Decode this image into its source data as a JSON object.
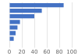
{
  "chart_data": {
    "type": "bar",
    "orientation": "horizontal",
    "categories": [
      null,
      null,
      null,
      null,
      null,
      null,
      null
    ],
    "values": [
      87.0,
      52.0,
      40.0,
      17.0,
      13.0,
      10.0,
      7.0
    ],
    "color": "#4472c4",
    "xlim": [
      0,
      100
    ],
    "xticks": [
      0,
      20,
      40,
      60,
      80,
      100
    ],
    "grid": true,
    "tick_labels": "x"
  }
}
